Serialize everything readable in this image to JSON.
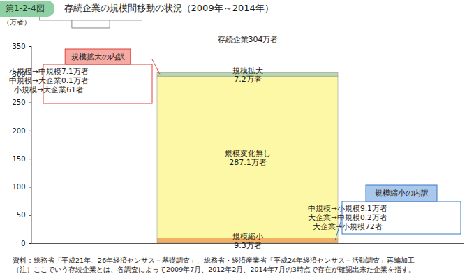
{
  "chart_data": {
    "type": "bar",
    "stacked": true,
    "data_labels": true,
    "figure_label": "第1-2-4図",
    "title": "存続企業の規模間移動の状況（2009年～2014年）",
    "y_label": "（万者）",
    "categories": [
      null
    ],
    "series": [
      {
        "name": "規模縮小",
        "color": "#f2b063",
        "values": [
          9.3
        ],
        "value_labels": [
          "9.3万者"
        ]
      },
      {
        "name": "規模変化無し",
        "color": "#fdf8a6",
        "values": [
          287.1
        ],
        "value_labels": [
          "287.1万者"
        ]
      },
      {
        "name": "規模拡大",
        "color": "#b6dbab",
        "values": [
          7.2
        ],
        "value_labels": [
          "7.2万者"
        ]
      }
    ],
    "ylim": [
      0,
      350
    ],
    "yticks": [
      0,
      50,
      100,
      150,
      200,
      250,
      300,
      350
    ],
    "total_label": "存続企業304万者",
    "breakdowns": [
      {
        "title": "規模拡大の内訳",
        "series": "規模拡大",
        "color": "#f5aaa3",
        "border": "#e0403a",
        "lines": [
          "小規模→中規模7.1万者",
          "中規模→大企業0.1万者",
          "小規模→大企業61者"
        ]
      },
      {
        "title": "規模縮小の内訳",
        "series": "規模縮小",
        "color": "#a9c8ec",
        "border": "#3a78c8",
        "lines": [
          "中規模→小規模9.1万者",
          "大企業→中規模0.2万者",
          "大企業→小規模72者"
        ]
      }
    ],
    "notes": [
      "資料：総務省「平成21年、26年経済センサス－基礎調査」、総務省・経済産業省「平成24年経済センサス－活動調査」再編加工",
      "（注）ここでいう存続企業とは、各調査によって2009年7月、2012年2月、2014年7月の3時点で存在が確認出来た企業を指す。"
    ]
  }
}
